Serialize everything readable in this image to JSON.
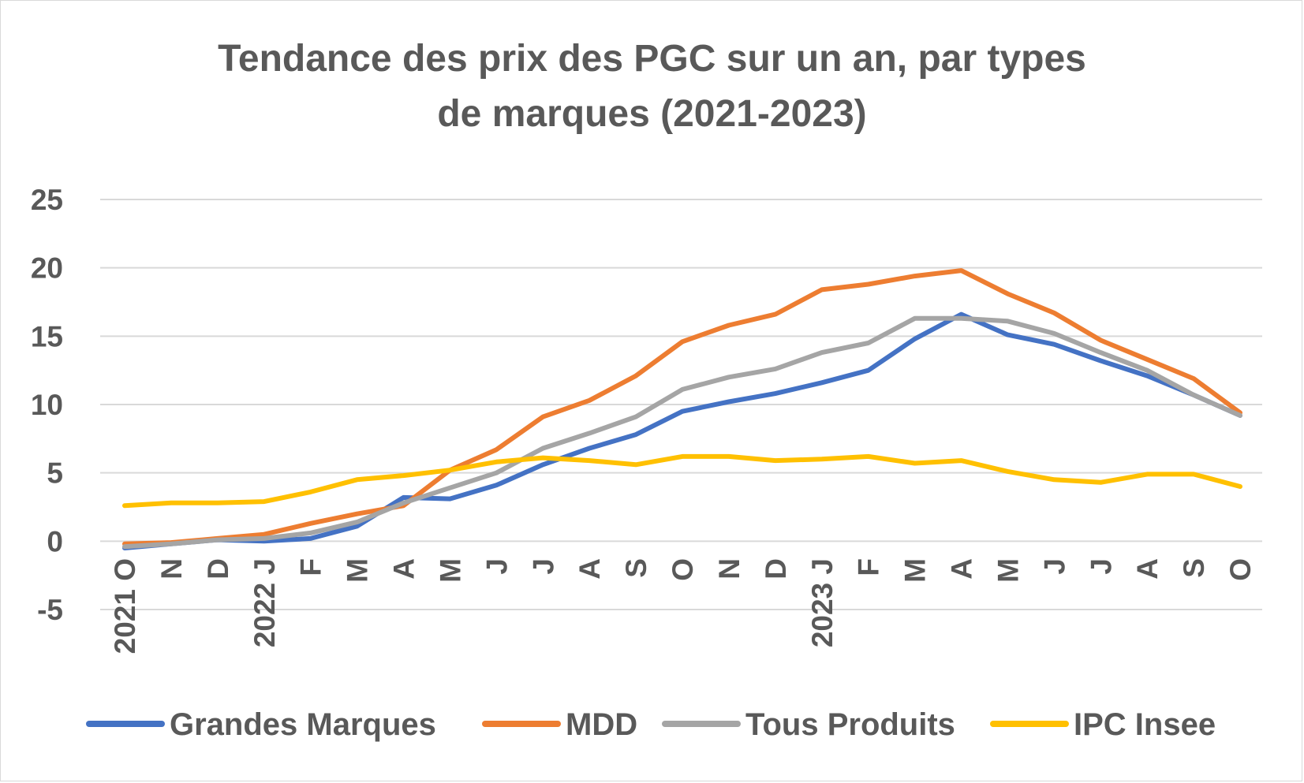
{
  "chart_data": {
    "type": "line",
    "title_lines": [
      "Tendance des prix des PGC sur un an, par types",
      "de marques (2021-2023)"
    ],
    "categories": [
      "2021 O",
      "N",
      "D",
      "2022 J",
      "F",
      "M",
      "A",
      "M",
      "J",
      "J",
      "A",
      "S",
      "O",
      "N",
      "D",
      "2023 J",
      "F",
      "M",
      "A",
      "M",
      "J",
      "J",
      "A",
      "S",
      "O"
    ],
    "ylim": [
      -5,
      25
    ],
    "yticks": [
      -5,
      0,
      5,
      10,
      15,
      20,
      25
    ],
    "grid": true,
    "legend_position": "bottom",
    "series": [
      {
        "name": "Grandes Marques",
        "color": "#4472C4",
        "values": [
          -0.5,
          -0.2,
          0.1,
          0.0,
          0.2,
          1.1,
          3.2,
          3.1,
          4.1,
          5.6,
          6.8,
          7.8,
          9.5,
          10.2,
          10.8,
          11.6,
          12.5,
          14.8,
          16.6,
          15.1,
          14.4,
          13.2,
          12.1,
          10.7,
          9.2
        ]
      },
      {
        "name": "MDD",
        "color": "#ED7D31",
        "values": [
          -0.2,
          -0.1,
          0.2,
          0.5,
          1.3,
          2.0,
          2.6,
          5.2,
          6.7,
          9.1,
          10.3,
          12.1,
          14.6,
          15.8,
          16.6,
          18.4,
          18.8,
          19.4,
          19.8,
          18.1,
          16.7,
          14.7,
          13.3,
          11.9,
          9.4
        ]
      },
      {
        "name": "Tous Produits",
        "color": "#A5A5A5",
        "values": [
          -0.4,
          -0.2,
          0.1,
          0.2,
          0.6,
          1.4,
          2.8,
          3.9,
          5.0,
          6.8,
          7.9,
          9.1,
          11.1,
          12.0,
          12.6,
          13.8,
          14.5,
          16.3,
          16.3,
          16.1,
          15.2,
          13.8,
          12.5,
          10.7,
          9.2
        ]
      },
      {
        "name": "IPC Insee",
        "color": "#FFC000",
        "values": [
          2.6,
          2.8,
          2.8,
          2.9,
          3.6,
          4.5,
          4.8,
          5.2,
          5.8,
          6.1,
          5.9,
          5.6,
          6.2,
          6.2,
          5.9,
          6.0,
          6.2,
          5.7,
          5.9,
          5.1,
          4.5,
          4.3,
          4.9,
          4.9,
          4.0
        ]
      }
    ]
  }
}
